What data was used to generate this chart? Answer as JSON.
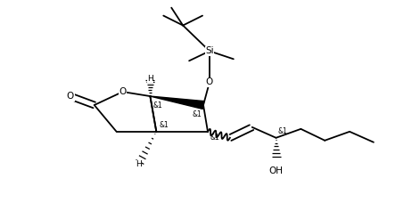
{
  "background_color": "#ffffff",
  "line_color": "#000000",
  "line_width": 1.3,
  "figsize": [
    4.62,
    2.37
  ],
  "dpi": 100,
  "xlim": [
    0,
    46.2
  ],
  "ylim": [
    0,
    23.7
  ]
}
